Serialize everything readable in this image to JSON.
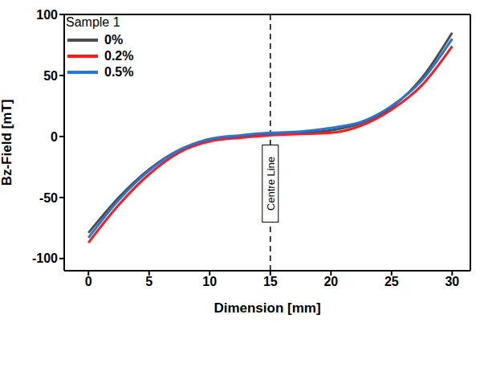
{
  "chart_data": {
    "type": "line",
    "x_label": "Dimension [mm]",
    "y_label": "Bz-Field [mT]",
    "legend_title": "Sample 1",
    "legend": "upper left",
    "x": [
      0,
      2.5,
      5,
      7.5,
      10,
      12.5,
      15,
      17.5,
      20,
      22.5,
      25,
      27.5,
      30
    ],
    "series": [
      {
        "name": "0%",
        "color": "#4d4d4d",
        "values": [
          -79,
          -50,
          -27,
          -11,
          -3,
          0,
          2,
          3,
          5,
          11,
          24,
          48,
          85
        ]
      },
      {
        "name": "0.2%",
        "color": "#ff1a1a",
        "values": [
          -87,
          -56,
          -31,
          -13,
          -4,
          -1,
          1,
          2,
          3,
          9,
          22,
          42,
          74
        ]
      },
      {
        "name": "0.5%",
        "color": "#2277dd",
        "values": [
          -83,
          -52,
          -28,
          -11,
          -2,
          1,
          3,
          4,
          7,
          12,
          25,
          46,
          80
        ]
      }
    ],
    "xlim": [
      -2,
      31.5
    ],
    "xticks": [
      0,
      5,
      10,
      15,
      20,
      25,
      30
    ],
    "ylim": [
      -110,
      100
    ],
    "yticks": [
      -100,
      -50,
      0,
      50,
      100
    ],
    "annotations": [
      {
        "x": 15,
        "text": "Centre Line"
      }
    ]
  }
}
